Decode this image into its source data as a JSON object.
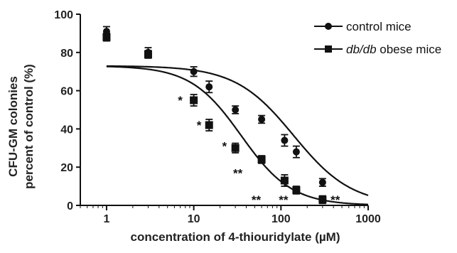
{
  "chart_data": {
    "type": "scatter",
    "x_scale": "log",
    "xlim": [
      0.5,
      1000
    ],
    "ylim": [
      0,
      100
    ],
    "x_ticks": [
      1,
      10,
      100,
      1000
    ],
    "y_ticks": [
      0,
      20,
      40,
      60,
      80,
      100
    ],
    "xlabel": "concentration of  4-thiouridylate (µM)",
    "ylabel": [
      "CFU-GM colonies",
      "percent of control (%)"
    ],
    "legend_position": "top-right",
    "grid": false,
    "series": [
      {
        "name": "control mice",
        "marker": "circle",
        "color": "#111111",
        "points": [
          {
            "x": 1,
            "y": 91,
            "err": 2.5
          },
          {
            "x": 3,
            "y": 80,
            "err": 2.5
          },
          {
            "x": 10,
            "y": 70,
            "err": 2.5
          },
          {
            "x": 15,
            "y": 62,
            "err": 3
          },
          {
            "x": 30,
            "y": 50,
            "err": 2
          },
          {
            "x": 60,
            "y": 45,
            "err": 2
          },
          {
            "x": 110,
            "y": 34,
            "err": 3
          },
          {
            "x": 150,
            "y": 28,
            "err": 3
          },
          {
            "x": 300,
            "y": 12,
            "err": 2
          }
        ],
        "fit": {
          "top": 73,
          "bottom": 0,
          "ec50": 140,
          "hill": 1.3
        }
      },
      {
        "name": "db/db obese mice",
        "name_italic": "db/db",
        "name_rest": " obese mice",
        "marker": "square",
        "color": "#111111",
        "points": [
          {
            "x": 1,
            "y": 88,
            "err": 2
          },
          {
            "x": 3,
            "y": 79,
            "err": 2
          },
          {
            "x": 10,
            "y": 55,
            "err": 3
          },
          {
            "x": 15,
            "y": 42,
            "err": 3
          },
          {
            "x": 30,
            "y": 30,
            "err": 2.5
          },
          {
            "x": 60,
            "y": 24,
            "err": 2
          },
          {
            "x": 110,
            "y": 13,
            "err": 3
          },
          {
            "x": 150,
            "y": 8,
            "err": 2
          },
          {
            "x": 300,
            "y": 3,
            "err": 2
          }
        ],
        "fit": {
          "top": 73,
          "bottom": 0,
          "ec50": 35,
          "hill": 1.5
        }
      }
    ],
    "annotations": [
      {
        "text": "*",
        "x": 7,
        "y": 55
      },
      {
        "text": "*",
        "x": 11.5,
        "y": 42
      },
      {
        "text": "*",
        "x": 22.5,
        "y": 31
      },
      {
        "text": "**",
        "x": 32,
        "y": 17
      },
      {
        "text": "**",
        "x": 52,
        "y": 3
      },
      {
        "text": "**",
        "x": 107,
        "y": 3
      },
      {
        "text": "**",
        "x": 420,
        "y": 3
      }
    ]
  }
}
